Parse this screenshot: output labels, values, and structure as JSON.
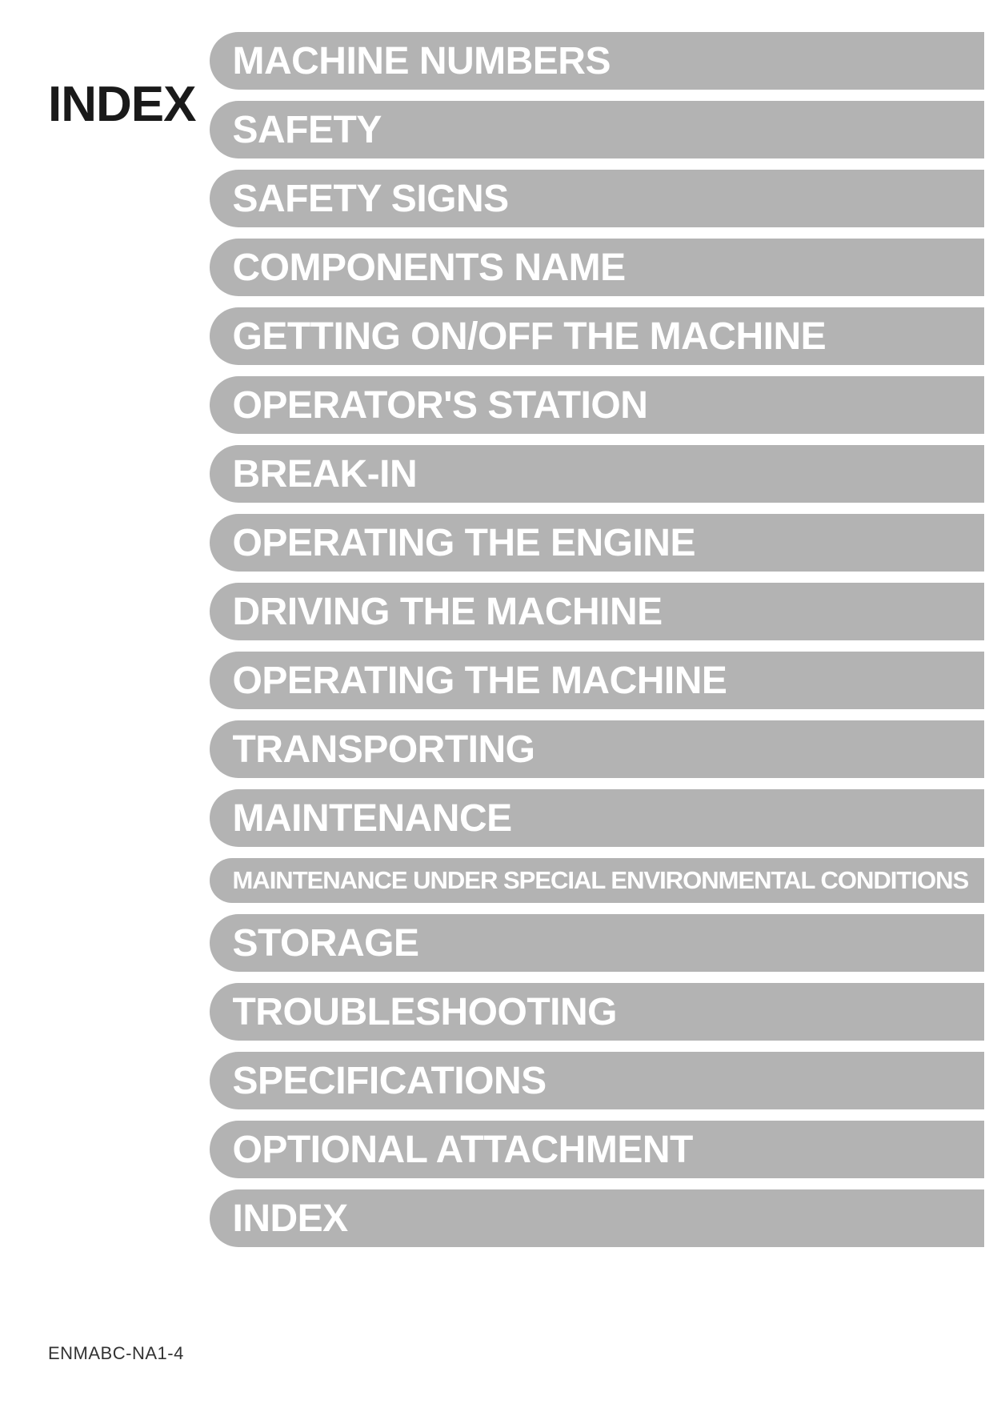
{
  "page_title": "INDEX",
  "footer_code": "ENMABC-NA1-4",
  "colors": {
    "tab_bg": "#b3b3b3",
    "tab_text": "#ffffff",
    "title_text": "#1a1a1a",
    "page_bg": "#ffffff",
    "footer_text": "#333333"
  },
  "typography": {
    "title_fontsize": 62,
    "tab_fontsize": 48,
    "tab_small_fontsize": 31,
    "footer_fontsize": 22,
    "font_family": "Myriad Pro / Helvetica Condensed",
    "font_weight": "bold"
  },
  "layout": {
    "tab_height": 72,
    "tab_small_height": 56,
    "tab_gap": 14,
    "tab_border_radius_left": 40
  },
  "tabs": [
    {
      "label": "MACHINE NUMBERS",
      "size": "normal"
    },
    {
      "label": "SAFETY",
      "size": "normal"
    },
    {
      "label": "SAFETY SIGNS",
      "size": "normal"
    },
    {
      "label": "COMPONENTS NAME",
      "size": "normal"
    },
    {
      "label": "GETTING ON/OFF THE MACHINE",
      "size": "normal"
    },
    {
      "label": "OPERATOR'S STATION",
      "size": "normal"
    },
    {
      "label": "BREAK-IN",
      "size": "normal"
    },
    {
      "label": "OPERATING THE ENGINE",
      "size": "normal"
    },
    {
      "label": "DRIVING THE MACHINE",
      "size": "normal"
    },
    {
      "label": "OPERATING THE MACHINE",
      "size": "normal"
    },
    {
      "label": "TRANSPORTING",
      "size": "normal"
    },
    {
      "label": "MAINTENANCE",
      "size": "normal"
    },
    {
      "label": "MAINTENANCE UNDER SPECIAL ENVIRONMENTAL CONDITIONS",
      "size": "small"
    },
    {
      "label": "STORAGE",
      "size": "normal"
    },
    {
      "label": "TROUBLESHOOTING",
      "size": "normal"
    },
    {
      "label": "SPECIFICATIONS",
      "size": "normal"
    },
    {
      "label": "OPTIONAL ATTACHMENT",
      "size": "normal"
    },
    {
      "label": "INDEX",
      "size": "normal"
    }
  ]
}
